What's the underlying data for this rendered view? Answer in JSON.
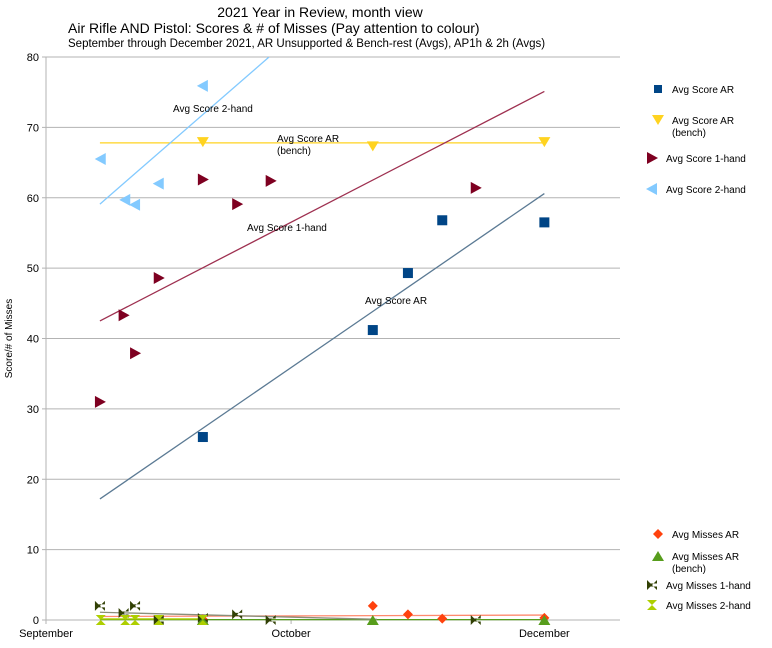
{
  "chart_data": {
    "type": "scatter",
    "title": "2021 Year in Review, month view",
    "subtitle": "Air Rifle AND Pistol: Scores & # of Misses (Pay attention to colour)",
    "subtitle2": "September through December 2021, AR Unsupported & Bench-rest (Avgs), AP1h & 2h (Avgs)",
    "xlabel": "",
    "ylabel": "Score/# of Misses",
    "xlim": [
      0,
      70
    ],
    "ylim": [
      0,
      80
    ],
    "yticks": [
      0,
      10,
      20,
      30,
      40,
      50,
      60,
      70,
      80
    ],
    "xticks": [
      {
        "x": 0,
        "label": "September"
      },
      {
        "x": 30,
        "label": "October"
      },
      {
        "x": 61,
        "label": "December"
      }
    ],
    "grid": true,
    "legend_position": "right",
    "series": [
      {
        "name": "Avg Score AR",
        "color": "#004586",
        "marker": "square",
        "x": [
          19.2,
          40,
          44.3,
          48.5,
          61
        ],
        "y": [
          26.0,
          41.2,
          49.3,
          56.8,
          56.5
        ],
        "trend": {
          "x": [
            6.6,
            61
          ],
          "y": [
            17.2,
            60.6
          ],
          "color": "#5b7a94"
        },
        "trend_label": "Avg Score AR"
      },
      {
        "name": "Avg Score AR (bench)",
        "color": "#ffd320",
        "marker": "triangle-down",
        "x": [
          19.2,
          40,
          61
        ],
        "y": [
          67.9,
          67.3,
          67.9
        ],
        "trend": {
          "x": [
            6.6,
            61
          ],
          "y": [
            67.8,
            67.8
          ],
          "color": "#ffd320"
        },
        "trend_label": "Avg Score AR (bench)"
      },
      {
        "name": "Avg Score 1-hand",
        "color": "#7e0021",
        "marker": "triangle-right",
        "x": [
          6.6,
          9.5,
          10.9,
          13.8,
          19.2,
          23.4,
          27.5,
          52.6
        ],
        "y": [
          31,
          43.3,
          37.9,
          48.6,
          62.6,
          59.1,
          62.4,
          61.4
        ],
        "trend": {
          "x": [
            6.6,
            61
          ],
          "y": [
            42.5,
            75.1
          ],
          "color": "#9e3050"
        },
        "trend_label": "Avg Score 1-hand"
      },
      {
        "name": "Avg Score 2-hand",
        "color": "#83caff",
        "marker": "triangle-left",
        "x": [
          6.7,
          9.7,
          10.9,
          13.8,
          19.2
        ],
        "y": [
          65.5,
          59.7,
          59.0,
          62.0,
          75.9
        ],
        "trend": {
          "x": [
            6.6,
            27.3
          ],
          "y": [
            59.1,
            80
          ],
          "color": "#83caff"
        },
        "trend_label": "Avg Score 2-hand"
      },
      {
        "name": "Avg Misses AR",
        "color": "#ff420e",
        "marker": "diamond",
        "x": [
          19.2,
          40,
          44.3,
          48.5,
          61
        ],
        "y": [
          0.1,
          2.0,
          0.8,
          0.2,
          0.3
        ],
        "trend": {
          "x": [
            6.6,
            61
          ],
          "y": [
            0.5,
            0.7
          ],
          "color": "#ff8a6e"
        }
      },
      {
        "name": "Avg Misses AR (bench)",
        "color": "#579d1c",
        "marker": "triangle-up",
        "x": [
          19.2,
          40,
          61
        ],
        "y": [
          0,
          0,
          0
        ],
        "trend": {
          "x": [
            6.6,
            61
          ],
          "y": [
            0.05,
            0.05
          ],
          "color": "#579d1c"
        }
      },
      {
        "name": "Avg Misses 1-hand",
        "color": "#314004",
        "marker": "bowtie",
        "x": [
          6.6,
          9.5,
          10.9,
          13.8,
          19.2,
          23.4,
          27.5,
          52.6
        ],
        "y": [
          2,
          1,
          2,
          0,
          0.3,
          0.8,
          0,
          0
        ],
        "trend": {
          "x": [
            6.6,
            40.5
          ],
          "y": [
            1.1,
            0.1
          ],
          "color": "#8a8f7a"
        }
      },
      {
        "name": "Avg Misses 2-hand",
        "color": "#aecf00",
        "marker": "hourglass",
        "x": [
          6.7,
          9.7,
          10.9,
          13.8,
          19.2
        ],
        "y": [
          0,
          0,
          0,
          0,
          0
        ],
        "trend": {
          "x": [
            6.6,
            19.2
          ],
          "y": [
            0.15,
            0.15
          ],
          "color": "#aecf00"
        }
      }
    ]
  }
}
